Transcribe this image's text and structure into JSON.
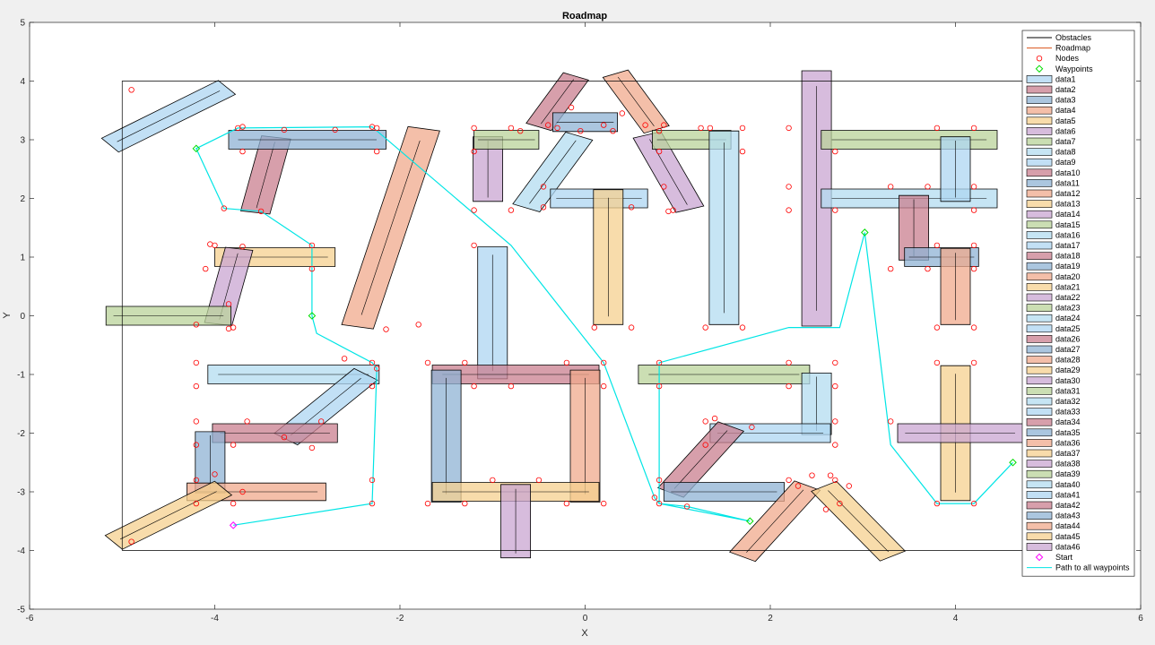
{
  "chart_data": {
    "type": "line",
    "title": "Roadmap",
    "xlabel": "X",
    "ylabel": "Y",
    "xlim": [
      -6,
      6
    ],
    "ylim": [
      -5,
      5
    ],
    "x_ticks": [
      "-6",
      "-4",
      "-2",
      "0",
      "2",
      "4",
      "6"
    ],
    "y_ticks": [
      "-5",
      "-4",
      "-3",
      "-2",
      "-1",
      "0",
      "1",
      "2",
      "3",
      "4",
      "5"
    ],
    "grid": false,
    "legend_position": "top-right",
    "boundary": [
      [
        -5,
        -4
      ],
      [
        5,
        -4
      ],
      [
        5,
        4
      ],
      [
        -5,
        4
      ]
    ],
    "legend": [
      {
        "label": "Obstacles",
        "kind": "line",
        "color": "#000000"
      },
      {
        "label": "Roadmap",
        "kind": "line",
        "color": "#d95319"
      },
      {
        "label": "Nodes",
        "kind": "circle",
        "color": "#ff0000"
      },
      {
        "label": "Waypoints",
        "kind": "diamond",
        "color": "#00dd00"
      },
      {
        "label": "data1",
        "kind": "patch"
      },
      {
        "label": "data2",
        "kind": "patch"
      },
      {
        "label": "data3",
        "kind": "patch"
      },
      {
        "label": "data4",
        "kind": "patch"
      },
      {
        "label": "data5",
        "kind": "patch"
      },
      {
        "label": "data6",
        "kind": "patch"
      },
      {
        "label": "data7",
        "kind": "patch"
      },
      {
        "label": "data8",
        "kind": "patch"
      },
      {
        "label": "data9",
        "kind": "patch"
      },
      {
        "label": "data10",
        "kind": "patch"
      },
      {
        "label": "data11",
        "kind": "patch"
      },
      {
        "label": "data12",
        "kind": "patch"
      },
      {
        "label": "data13",
        "kind": "patch"
      },
      {
        "label": "data14",
        "kind": "patch"
      },
      {
        "label": "data15",
        "kind": "patch"
      },
      {
        "label": "data16",
        "kind": "patch"
      },
      {
        "label": "data17",
        "kind": "patch"
      },
      {
        "label": "data18",
        "kind": "patch"
      },
      {
        "label": "data19",
        "kind": "patch"
      },
      {
        "label": "data20",
        "kind": "patch"
      },
      {
        "label": "data21",
        "kind": "patch"
      },
      {
        "label": "data22",
        "kind": "patch"
      },
      {
        "label": "data23",
        "kind": "patch"
      },
      {
        "label": "data24",
        "kind": "patch"
      },
      {
        "label": "data25",
        "kind": "patch"
      },
      {
        "label": "data26",
        "kind": "patch"
      },
      {
        "label": "data27",
        "kind": "patch"
      },
      {
        "label": "data28",
        "kind": "patch"
      },
      {
        "label": "data29",
        "kind": "patch"
      },
      {
        "label": "data30",
        "kind": "patch"
      },
      {
        "label": "data31",
        "kind": "patch"
      },
      {
        "label": "data32",
        "kind": "patch"
      },
      {
        "label": "data33",
        "kind": "patch"
      },
      {
        "label": "data34",
        "kind": "patch"
      },
      {
        "label": "data35",
        "kind": "patch"
      },
      {
        "label": "data36",
        "kind": "patch"
      },
      {
        "label": "data37",
        "kind": "patch"
      },
      {
        "label": "data38",
        "kind": "patch"
      },
      {
        "label": "data39",
        "kind": "patch"
      },
      {
        "label": "data40",
        "kind": "patch"
      },
      {
        "label": "data41",
        "kind": "patch"
      },
      {
        "label": "data42",
        "kind": "patch"
      },
      {
        "label": "data43",
        "kind": "patch"
      },
      {
        "label": "data44",
        "kind": "patch"
      },
      {
        "label": "data45",
        "kind": "patch"
      },
      {
        "label": "data46",
        "kind": "patch"
      },
      {
        "label": "Start",
        "kind": "diamond",
        "color": "#ff00ff"
      },
      {
        "label": "Path to all waypoints",
        "kind": "line",
        "color": "#00e5e5"
      }
    ],
    "palette": [
      "#aed6f1",
      "#c97f8f",
      "#8fb3d4",
      "#f0a98c",
      "#f5d08f",
      "#c9a5d2",
      "#b9d39a",
      "#b3dcf0"
    ],
    "obstacles": [
      {
        "cx": -4.5,
        "cy": 3.4,
        "len": 1.6,
        "w": 0.3,
        "ang": 38
      },
      {
        "cx": -3.45,
        "cy": 2.4,
        "len": 1.3,
        "w": 0.32,
        "ang": 80
      },
      {
        "cx": -3.0,
        "cy": 3.0,
        "len": 1.7,
        "w": 0.32,
        "ang": 0
      },
      {
        "cx": -2.1,
        "cy": 1.5,
        "len": 3.45,
        "w": 0.35,
        "ang": 78
      },
      {
        "cx": -3.35,
        "cy": 1.0,
        "len": 1.3,
        "w": 0.32,
        "ang": 0
      },
      {
        "cx": -3.85,
        "cy": 0.5,
        "len": 1.3,
        "w": 0.3,
        "ang": 80
      },
      {
        "cx": -4.5,
        "cy": 0.0,
        "len": 1.35,
        "w": 0.32,
        "ang": 0
      },
      {
        "cx": -3.15,
        "cy": -1.0,
        "len": 1.85,
        "w": 0.32,
        "ang": 0
      },
      {
        "cx": -2.8,
        "cy": -1.55,
        "len": 1.4,
        "w": 0.32,
        "ang": 52
      },
      {
        "cx": -3.35,
        "cy": -2.0,
        "len": 1.35,
        "w": 0.32,
        "ang": 0
      },
      {
        "cx": -4.05,
        "cy": -2.5,
        "len": 1.05,
        "w": 0.32,
        "ang": 90
      },
      {
        "cx": -3.55,
        "cy": -3.0,
        "len": 1.5,
        "w": 0.3,
        "ang": 0
      },
      {
        "cx": -4.5,
        "cy": -3.4,
        "len": 1.5,
        "w": 0.3,
        "ang": 38
      },
      {
        "cx": -1.05,
        "cy": 2.5,
        "len": 1.1,
        "w": 0.32,
        "ang": 90
      },
      {
        "cx": -0.85,
        "cy": 3.0,
        "len": 0.7,
        "w": 0.32,
        "ang": 0
      },
      {
        "cx": -0.35,
        "cy": 2.45,
        "len": 1.35,
        "w": 0.32,
        "ang": 65
      },
      {
        "cx": 0.15,
        "cy": 2.0,
        "len": 1.05,
        "w": 0.32,
        "ang": 0
      },
      {
        "cx": -0.3,
        "cy": 3.65,
        "len": 0.95,
        "w": 0.3,
        "ang": 65
      },
      {
        "cx": 0.0,
        "cy": 3.3,
        "len": 0.7,
        "w": 0.32,
        "ang": 0
      },
      {
        "cx": 0.55,
        "cy": 3.65,
        "len": 1.05,
        "w": 0.3,
        "ang": 115
      },
      {
        "cx": 0.25,
        "cy": 1.0,
        "len": 2.3,
        "w": 0.32,
        "ang": 90
      },
      {
        "cx": 0.9,
        "cy": 2.45,
        "len": 1.35,
        "w": 0.32,
        "ang": 110
      },
      {
        "cx": 1.15,
        "cy": 3.0,
        "len": 0.85,
        "w": 0.32,
        "ang": 0
      },
      {
        "cx": 1.5,
        "cy": 1.5,
        "len": 3.3,
        "w": 0.32,
        "ang": 90
      },
      {
        "cx": -1.0,
        "cy": 0.05,
        "len": 2.25,
        "w": 0.32,
        "ang": 90
      },
      {
        "cx": -0.75,
        "cy": -1.0,
        "len": 1.8,
        "w": 0.32,
        "ang": 0
      },
      {
        "cx": -1.5,
        "cy": -2.05,
        "len": 2.25,
        "w": 0.32,
        "ang": 90
      },
      {
        "cx": 0.0,
        "cy": -2.05,
        "len": 2.25,
        "w": 0.32,
        "ang": 90
      },
      {
        "cx": -0.75,
        "cy": -3.0,
        "len": 1.8,
        "w": 0.32,
        "ang": 0
      },
      {
        "cx": -0.75,
        "cy": -3.5,
        "len": 1.25,
        "w": 0.32,
        "ang": 90
      },
      {
        "cx": 1.5,
        "cy": -1.0,
        "len": 1.85,
        "w": 0.32,
        "ang": 0
      },
      {
        "cx": 2.5,
        "cy": -1.5,
        "len": 1.05,
        "w": 0.32,
        "ang": 90
      },
      {
        "cx": 2.0,
        "cy": -2.0,
        "len": 1.3,
        "w": 0.32,
        "ang": 0
      },
      {
        "cx": 1.25,
        "cy": -2.45,
        "len": 1.3,
        "w": 0.32,
        "ang": 60
      },
      {
        "cx": 1.5,
        "cy": -3.0,
        "len": 1.3,
        "w": 0.32,
        "ang": 0
      },
      {
        "cx": 2.05,
        "cy": -3.5,
        "len": 1.4,
        "w": 0.32,
        "ang": 60
      },
      {
        "cx": 2.95,
        "cy": -3.5,
        "len": 1.4,
        "w": 0.32,
        "ang": 122
      },
      {
        "cx": 2.5,
        "cy": 2.0,
        "len": 4.35,
        "w": 0.32,
        "ang": 90
      },
      {
        "cx": 3.5,
        "cy": 3.0,
        "len": 1.9,
        "w": 0.32,
        "ang": 0
      },
      {
        "cx": 3.5,
        "cy": 2.0,
        "len": 1.9,
        "w": 0.32,
        "ang": 0
      },
      {
        "cx": 4.0,
        "cy": 2.5,
        "len": 1.1,
        "w": 0.32,
        "ang": 90
      },
      {
        "cx": 3.55,
        "cy": 1.5,
        "len": 1.1,
        "w": 0.32,
        "ang": 90
      },
      {
        "cx": 3.85,
        "cy": 1.0,
        "len": 0.8,
        "w": 0.32,
        "ang": 0
      },
      {
        "cx": 4.0,
        "cy": 0.5,
        "len": 1.3,
        "w": 0.32,
        "ang": 90
      },
      {
        "cx": 4.0,
        "cy": -2.0,
        "len": 2.3,
        "w": 0.32,
        "ang": 90
      },
      {
        "cx": 4.05,
        "cy": -2.0,
        "len": 1.35,
        "w": 0.32,
        "ang": 0
      }
    ],
    "nodes": [
      [
        -4.9,
        3.85
      ],
      [
        -3.75,
        3.2
      ],
      [
        -3.7,
        3.22
      ],
      [
        -3.25,
        3.17
      ],
      [
        -2.7,
        3.17
      ],
      [
        -2.3,
        3.22
      ],
      [
        -2.25,
        3.2
      ],
      [
        -2.25,
        2.8
      ],
      [
        -3.7,
        2.8
      ],
      [
        -3.5,
        1.78
      ],
      [
        -3.9,
        1.83
      ],
      [
        -4.0,
        1.2
      ],
      [
        -4.05,
        1.22
      ],
      [
        -4.1,
        0.8
      ],
      [
        -3.7,
        1.18
      ],
      [
        -2.95,
        1.2
      ],
      [
        -2.95,
        0.8
      ],
      [
        -3.85,
        0.2
      ],
      [
        -3.8,
        -0.2
      ],
      [
        -3.85,
        -0.22
      ],
      [
        -4.2,
        -0.15
      ],
      [
        -2.15,
        -0.23
      ],
      [
        -1.8,
        -0.15
      ],
      [
        -4.2,
        -0.8
      ],
      [
        -4.2,
        -1.2
      ],
      [
        -2.3,
        -0.8
      ],
      [
        -2.3,
        -1.2
      ],
      [
        -2.6,
        -0.73
      ],
      [
        -2.25,
        -0.9
      ],
      [
        -2.85,
        -1.8
      ],
      [
        -3.65,
        -1.8
      ],
      [
        -3.25,
        -2.07
      ],
      [
        -2.95,
        -2.25
      ],
      [
        -4.2,
        -1.8
      ],
      [
        -4.2,
        -2.2
      ],
      [
        -3.8,
        -2.2
      ],
      [
        -4.2,
        -2.8
      ],
      [
        -4.0,
        -2.7
      ],
      [
        -4.2,
        -3.2
      ],
      [
        -3.7,
        -3.0
      ],
      [
        -3.8,
        -3.2
      ],
      [
        -2.3,
        -2.8
      ],
      [
        -2.3,
        -3.2
      ],
      [
        -4.9,
        -3.85
      ],
      [
        -1.2,
        3.2
      ],
      [
        -1.2,
        2.8
      ],
      [
        -1.2,
        1.8
      ],
      [
        -0.8,
        1.8
      ],
      [
        -0.8,
        3.2
      ],
      [
        -0.7,
        3.15
      ],
      [
        -0.4,
        3.25
      ],
      [
        -0.3,
        3.2
      ],
      [
        -0.45,
        2.2
      ],
      [
        -0.45,
        1.85
      ],
      [
        -0.05,
        3.15
      ],
      [
        -0.15,
        3.55
      ],
      [
        0.3,
        3.15
      ],
      [
        0.2,
        3.25
      ],
      [
        0.4,
        3.45
      ],
      [
        0.65,
        3.25
      ],
      [
        0.8,
        3.15
      ],
      [
        0.85,
        3.25
      ],
      [
        0.5,
        1.85
      ],
      [
        0.85,
        2.2
      ],
      [
        0.9,
        1.78
      ],
      [
        0.95,
        1.8
      ],
      [
        1.25,
        3.2
      ],
      [
        1.35,
        3.2
      ],
      [
        0.8,
        2.8
      ],
      [
        1.7,
        3.2
      ],
      [
        1.7,
        2.8
      ],
      [
        1.3,
        -0.2
      ],
      [
        1.7,
        -0.2
      ],
      [
        0.1,
        -0.2
      ],
      [
        0.5,
        -0.2
      ],
      [
        -1.2,
        1.2
      ],
      [
        -1.7,
        -0.8
      ],
      [
        -1.3,
        -0.8
      ],
      [
        -0.8,
        -1.2
      ],
      [
        -0.2,
        -0.8
      ],
      [
        0.2,
        -0.8
      ],
      [
        0.2,
        -1.2
      ],
      [
        -1.2,
        -1.2
      ],
      [
        -1.7,
        -3.2
      ],
      [
        -1.3,
        -3.2
      ],
      [
        -1.0,
        -2.8
      ],
      [
        -0.5,
        -2.8
      ],
      [
        -0.2,
        -3.2
      ],
      [
        0.2,
        -3.2
      ],
      [
        0.8,
        -0.8
      ],
      [
        0.8,
        -1.2
      ],
      [
        2.2,
        -0.8
      ],
      [
        2.7,
        -0.8
      ],
      [
        2.7,
        -1.2
      ],
      [
        2.2,
        -1.2
      ],
      [
        1.3,
        -1.8
      ],
      [
        1.4,
        -1.75
      ],
      [
        1.8,
        -1.9
      ],
      [
        1.3,
        -2.2
      ],
      [
        2.7,
        -1.8
      ],
      [
        2.7,
        -2.2
      ],
      [
        0.8,
        -2.8
      ],
      [
        0.75,
        -3.1
      ],
      [
        0.8,
        -3.2
      ],
      [
        1.1,
        -3.25
      ],
      [
        2.2,
        -2.8
      ],
      [
        2.3,
        -2.9
      ],
      [
        2.45,
        -2.72
      ],
      [
        2.65,
        -2.72
      ],
      [
        2.7,
        -2.8
      ],
      [
        2.85,
        -2.9
      ],
      [
        2.75,
        -3.2
      ],
      [
        2.6,
        -3.3
      ],
      [
        2.2,
        3.2
      ],
      [
        2.2,
        2.2
      ],
      [
        2.2,
        1.8
      ],
      [
        2.7,
        1.8
      ],
      [
        2.7,
        2.8
      ],
      [
        3.3,
        2.2
      ],
      [
        3.7,
        2.2
      ],
      [
        3.8,
        3.2
      ],
      [
        4.2,
        3.2
      ],
      [
        4.2,
        2.2
      ],
      [
        4.2,
        1.8
      ],
      [
        3.8,
        1.2
      ],
      [
        4.2,
        1.2
      ],
      [
        4.2,
        0.8
      ],
      [
        3.3,
        0.8
      ],
      [
        3.7,
        0.8
      ],
      [
        3.8,
        -0.2
      ],
      [
        4.2,
        -0.2
      ],
      [
        3.8,
        -0.8
      ],
      [
        4.2,
        -0.8
      ],
      [
        3.3,
        -1.8
      ],
      [
        3.8,
        -3.2
      ],
      [
        4.2,
        -3.2
      ]
    ],
    "waypoints": [
      [
        -4.2,
        2.85
      ],
      [
        -2.95,
        0.0
      ],
      [
        1.78,
        -3.5
      ],
      [
        3.02,
        1.42
      ],
      [
        4.62,
        -2.5
      ]
    ],
    "start": [
      -3.8,
      -3.57
    ],
    "path": [
      [
        -3.8,
        -3.57
      ],
      [
        -2.3,
        -3.2
      ],
      [
        -2.25,
        -0.9
      ],
      [
        -2.3,
        -0.8
      ],
      [
        -2.9,
        -0.3
      ],
      [
        -2.95,
        0.0
      ],
      [
        -2.95,
        0.8
      ],
      [
        -2.95,
        1.2
      ],
      [
        -3.5,
        1.78
      ],
      [
        -3.9,
        1.83
      ],
      [
        -4.2,
        2.85
      ],
      [
        -3.75,
        3.2
      ],
      [
        -2.3,
        3.22
      ],
      [
        -0.8,
        1.2
      ],
      [
        0.2,
        -0.8
      ],
      [
        0.75,
        -3.1
      ],
      [
        0.8,
        -3.2
      ],
      [
        1.78,
        -3.5
      ],
      [
        1.1,
        -3.25
      ],
      [
        0.8,
        -3.2
      ],
      [
        0.8,
        -0.8
      ],
      [
        2.2,
        -0.2
      ],
      [
        2.75,
        -0.2
      ],
      [
        3.02,
        1.42
      ],
      [
        3.3,
        -2.2
      ],
      [
        3.8,
        -3.2
      ],
      [
        4.2,
        -3.2
      ],
      [
        4.62,
        -2.5
      ]
    ]
  }
}
